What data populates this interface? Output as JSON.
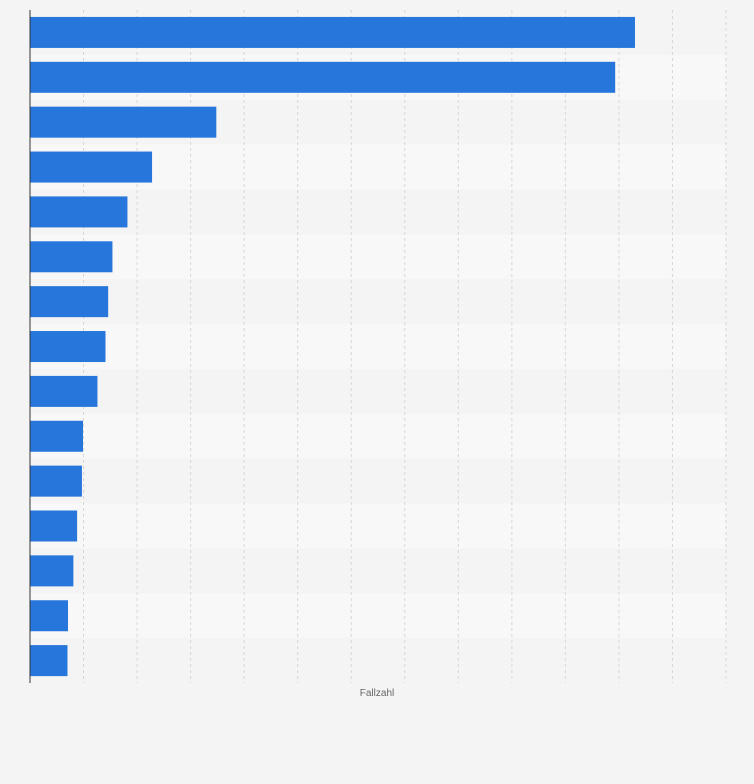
{
  "chart_data": {
    "type": "bar",
    "orientation": "horizontal",
    "title": "",
    "xlabel": "Fallzahl",
    "ylabel": "",
    "categories": [
      "",
      "",
      "",
      "",
      "",
      "",
      "",
      "",
      "",
      "",
      "",
      "",
      "",
      "",
      ""
    ],
    "values": [
      11.3,
      10.93,
      3.48,
      2.28,
      1.82,
      1.54,
      1.46,
      1.41,
      1.26,
      0.99,
      0.97,
      0.88,
      0.81,
      0.71,
      0.7
    ],
    "xlim": [
      0,
      13
    ],
    "grid": true,
    "legend": "none",
    "colors": {
      "bar": "#2776dc",
      "band_light": "#f8f8f8",
      "band_dark": "#f4f4f4",
      "grid": "#d7d7d7",
      "axis": "#333333"
    }
  }
}
